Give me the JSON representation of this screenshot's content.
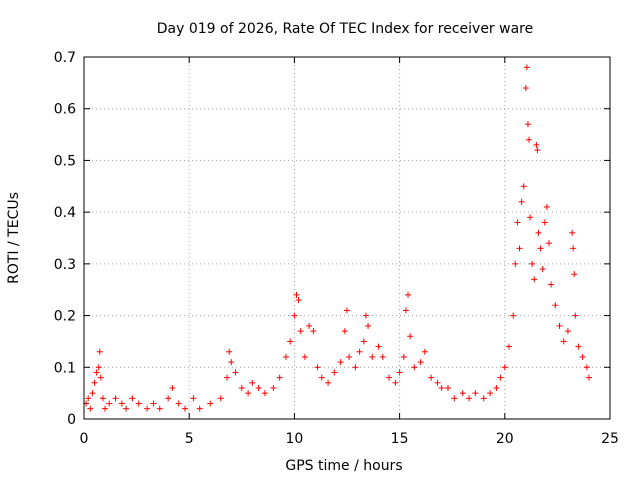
{
  "chart_data": {
    "type": "scatter",
    "title": "Day 019 of 2026, Rate Of TEC Index for receiver ware",
    "xlabel": "GPS time / hours",
    "ylabel": "ROTI / TECUs",
    "xlim": [
      0,
      25
    ],
    "ylim": [
      0,
      0.7
    ],
    "xticks": [
      0,
      5,
      10,
      15,
      20,
      25
    ],
    "xtick_labels": [
      "0",
      "5",
      "10",
      "15",
      "20",
      "25"
    ],
    "yticks": [
      0,
      0.1,
      0.2,
      0.3,
      0.4,
      0.5,
      0.6,
      0.7
    ],
    "ytick_labels": [
      "0",
      "0.1",
      "0.2",
      "0.3",
      "0.4",
      "0.5",
      "0.6",
      "0.7"
    ],
    "grid": true,
    "marker": "+",
    "series": [
      {
        "name": "ROTI",
        "color": "#ff0000",
        "points": [
          [
            0.1,
            0.03
          ],
          [
            0.2,
            0.04
          ],
          [
            0.3,
            0.02
          ],
          [
            0.4,
            0.05
          ],
          [
            0.5,
            0.07
          ],
          [
            0.6,
            0.09
          ],
          [
            0.7,
            0.1
          ],
          [
            0.75,
            0.13
          ],
          [
            0.8,
            0.08
          ],
          [
            0.9,
            0.04
          ],
          [
            1.0,
            0.02
          ],
          [
            1.2,
            0.03
          ],
          [
            1.5,
            0.04
          ],
          [
            1.8,
            0.03
          ],
          [
            2.0,
            0.02
          ],
          [
            2.3,
            0.04
          ],
          [
            2.6,
            0.03
          ],
          [
            3.0,
            0.02
          ],
          [
            3.3,
            0.03
          ],
          [
            3.6,
            0.02
          ],
          [
            4.0,
            0.04
          ],
          [
            4.2,
            0.06
          ],
          [
            4.5,
            0.03
          ],
          [
            4.8,
            0.02
          ],
          [
            5.2,
            0.04
          ],
          [
            5.5,
            0.02
          ],
          [
            6.0,
            0.03
          ],
          [
            6.5,
            0.04
          ],
          [
            6.8,
            0.08
          ],
          [
            6.9,
            0.13
          ],
          [
            7.0,
            0.11
          ],
          [
            7.2,
            0.09
          ],
          [
            7.5,
            0.06
          ],
          [
            7.8,
            0.05
          ],
          [
            8.0,
            0.07
          ],
          [
            8.3,
            0.06
          ],
          [
            8.6,
            0.05
          ],
          [
            9.0,
            0.06
          ],
          [
            9.3,
            0.08
          ],
          [
            9.6,
            0.12
          ],
          [
            9.8,
            0.15
          ],
          [
            10.0,
            0.2
          ],
          [
            10.1,
            0.24
          ],
          [
            10.2,
            0.23
          ],
          [
            10.3,
            0.17
          ],
          [
            10.5,
            0.12
          ],
          [
            10.7,
            0.18
          ],
          [
            10.9,
            0.17
          ],
          [
            11.1,
            0.1
          ],
          [
            11.3,
            0.08
          ],
          [
            11.6,
            0.07
          ],
          [
            11.9,
            0.09
          ],
          [
            12.2,
            0.11
          ],
          [
            12.4,
            0.17
          ],
          [
            12.5,
            0.21
          ],
          [
            12.6,
            0.12
          ],
          [
            12.9,
            0.1
          ],
          [
            13.1,
            0.13
          ],
          [
            13.3,
            0.15
          ],
          [
            13.4,
            0.2
          ],
          [
            13.5,
            0.18
          ],
          [
            13.7,
            0.12
          ],
          [
            14.0,
            0.14
          ],
          [
            14.2,
            0.12
          ],
          [
            14.5,
            0.08
          ],
          [
            14.8,
            0.07
          ],
          [
            15.0,
            0.09
          ],
          [
            15.2,
            0.12
          ],
          [
            15.3,
            0.21
          ],
          [
            15.4,
            0.24
          ],
          [
            15.5,
            0.16
          ],
          [
            15.7,
            0.1
          ],
          [
            16.0,
            0.11
          ],
          [
            16.2,
            0.13
          ],
          [
            16.5,
            0.08
          ],
          [
            16.8,
            0.07
          ],
          [
            17.0,
            0.06
          ],
          [
            17.3,
            0.06
          ],
          [
            17.6,
            0.04
          ],
          [
            18.0,
            0.05
          ],
          [
            18.3,
            0.04
          ],
          [
            18.6,
            0.05
          ],
          [
            19.0,
            0.04
          ],
          [
            19.3,
            0.05
          ],
          [
            19.6,
            0.06
          ],
          [
            19.8,
            0.08
          ],
          [
            20.0,
            0.1
          ],
          [
            20.2,
            0.14
          ],
          [
            20.4,
            0.2
          ],
          [
            20.5,
            0.3
          ],
          [
            20.6,
            0.38
          ],
          [
            20.7,
            0.33
          ],
          [
            20.8,
            0.42
          ],
          [
            20.9,
            0.45
          ],
          [
            21.0,
            0.64
          ],
          [
            21.05,
            0.68
          ],
          [
            21.1,
            0.57
          ],
          [
            21.15,
            0.54
          ],
          [
            21.2,
            0.39
          ],
          [
            21.3,
            0.3
          ],
          [
            21.4,
            0.27
          ],
          [
            21.5,
            0.53
          ],
          [
            21.55,
            0.52
          ],
          [
            21.6,
            0.36
          ],
          [
            21.7,
            0.33
          ],
          [
            21.8,
            0.29
          ],
          [
            21.9,
            0.38
          ],
          [
            22.0,
            0.41
          ],
          [
            22.1,
            0.34
          ],
          [
            22.2,
            0.26
          ],
          [
            22.4,
            0.22
          ],
          [
            22.6,
            0.18
          ],
          [
            22.8,
            0.15
          ],
          [
            23.0,
            0.17
          ],
          [
            23.2,
            0.36
          ],
          [
            23.25,
            0.33
          ],
          [
            23.3,
            0.28
          ],
          [
            23.35,
            0.2
          ],
          [
            23.5,
            0.14
          ],
          [
            23.7,
            0.12
          ],
          [
            23.9,
            0.1
          ],
          [
            24.0,
            0.08
          ]
        ]
      }
    ]
  }
}
